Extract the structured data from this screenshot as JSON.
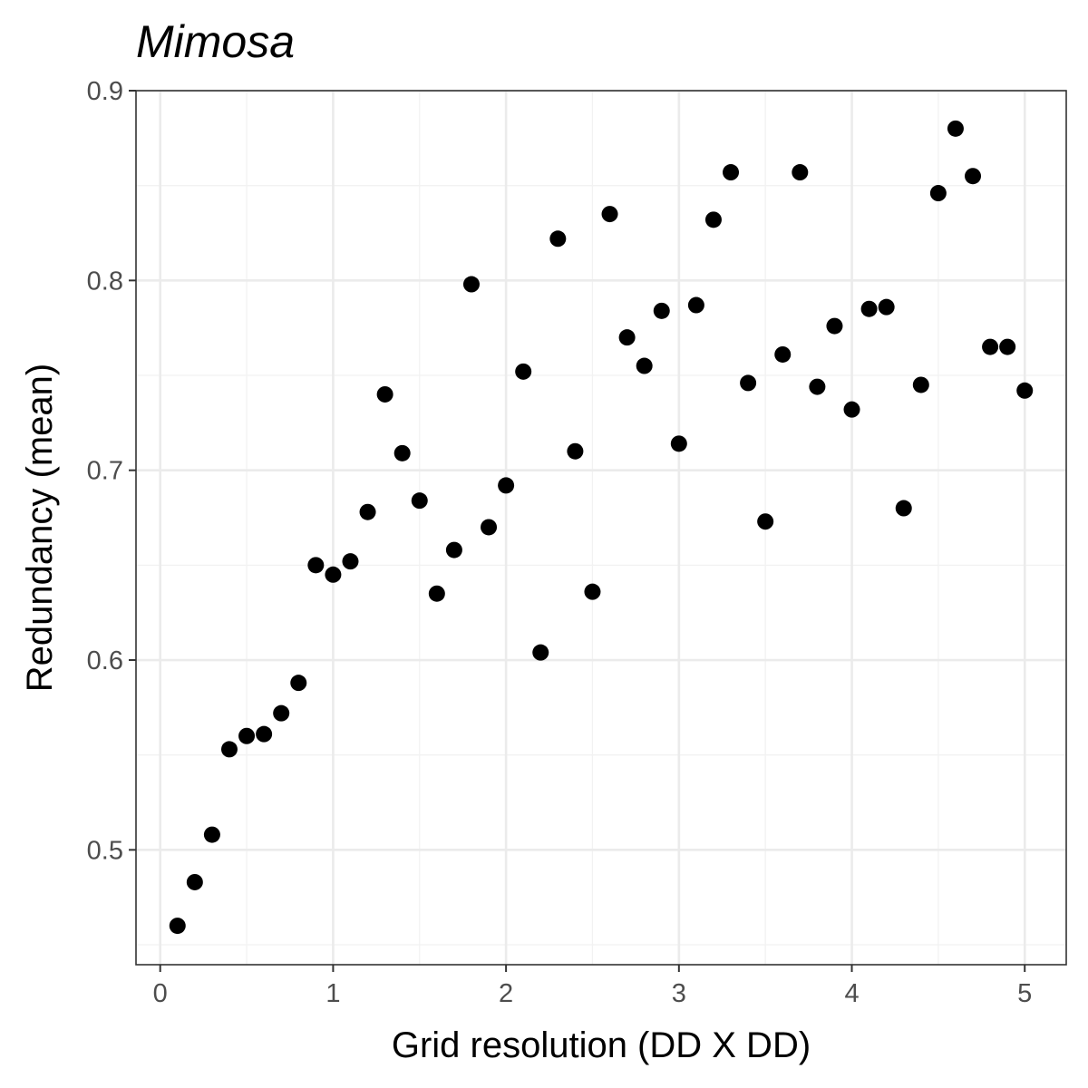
{
  "chart_data": {
    "type": "scatter",
    "title": "Mimosa",
    "xlabel": "Grid resolution (DD X DD)",
    "ylabel": "Redundancy (mean)",
    "xlim": [
      -0.14,
      5.24
    ],
    "ylim": [
      0.4395,
      0.9
    ],
    "x_ticks": [
      0,
      1,
      2,
      3,
      4,
      5
    ],
    "y_ticks": [
      0.5,
      0.6,
      0.7,
      0.8,
      0.9
    ],
    "x_tick_labels": [
      "0",
      "1",
      "2",
      "3",
      "4",
      "5"
    ],
    "y_tick_labels": [
      "0.5",
      "0.6",
      "0.7",
      "0.8",
      "0.9"
    ],
    "grid": true,
    "series": [
      {
        "color": "#000000",
        "points": [
          {
            "x": 0.1,
            "y": 0.46
          },
          {
            "x": 0.2,
            "y": 0.483
          },
          {
            "x": 0.3,
            "y": 0.508
          },
          {
            "x": 0.4,
            "y": 0.553
          },
          {
            "x": 0.5,
            "y": 0.56
          },
          {
            "x": 0.6,
            "y": 0.561
          },
          {
            "x": 0.7,
            "y": 0.572
          },
          {
            "x": 0.8,
            "y": 0.588
          },
          {
            "x": 0.9,
            "y": 0.65
          },
          {
            "x": 1.0,
            "y": 0.645
          },
          {
            "x": 1.1,
            "y": 0.652
          },
          {
            "x": 1.2,
            "y": 0.678
          },
          {
            "x": 1.3,
            "y": 0.74
          },
          {
            "x": 1.4,
            "y": 0.709
          },
          {
            "x": 1.5,
            "y": 0.684
          },
          {
            "x": 1.6,
            "y": 0.635
          },
          {
            "x": 1.7,
            "y": 0.658
          },
          {
            "x": 1.8,
            "y": 0.798
          },
          {
            "x": 1.9,
            "y": 0.67
          },
          {
            "x": 2.0,
            "y": 0.692
          },
          {
            "x": 2.1,
            "y": 0.752
          },
          {
            "x": 2.2,
            "y": 0.604
          },
          {
            "x": 2.3,
            "y": 0.822
          },
          {
            "x": 2.4,
            "y": 0.71
          },
          {
            "x": 2.5,
            "y": 0.636
          },
          {
            "x": 2.6,
            "y": 0.835
          },
          {
            "x": 2.7,
            "y": 0.77
          },
          {
            "x": 2.8,
            "y": 0.755
          },
          {
            "x": 2.9,
            "y": 0.784
          },
          {
            "x": 3.0,
            "y": 0.714
          },
          {
            "x": 3.1,
            "y": 0.787
          },
          {
            "x": 3.2,
            "y": 0.832
          },
          {
            "x": 3.3,
            "y": 0.857
          },
          {
            "x": 3.4,
            "y": 0.746
          },
          {
            "x": 3.5,
            "y": 0.673
          },
          {
            "x": 3.6,
            "y": 0.761
          },
          {
            "x": 3.7,
            "y": 0.857
          },
          {
            "x": 3.8,
            "y": 0.744
          },
          {
            "x": 3.9,
            "y": 0.776
          },
          {
            "x": 4.0,
            "y": 0.732
          },
          {
            "x": 4.1,
            "y": 0.785
          },
          {
            "x": 4.2,
            "y": 0.786
          },
          {
            "x": 4.3,
            "y": 0.68
          },
          {
            "x": 4.4,
            "y": 0.745
          },
          {
            "x": 4.5,
            "y": 0.846
          },
          {
            "x": 4.6,
            "y": 0.88
          },
          {
            "x": 4.7,
            "y": 0.855
          },
          {
            "x": 4.8,
            "y": 0.765
          },
          {
            "x": 4.9,
            "y": 0.765
          },
          {
            "x": 5.0,
            "y": 0.742
          }
        ]
      }
    ]
  }
}
